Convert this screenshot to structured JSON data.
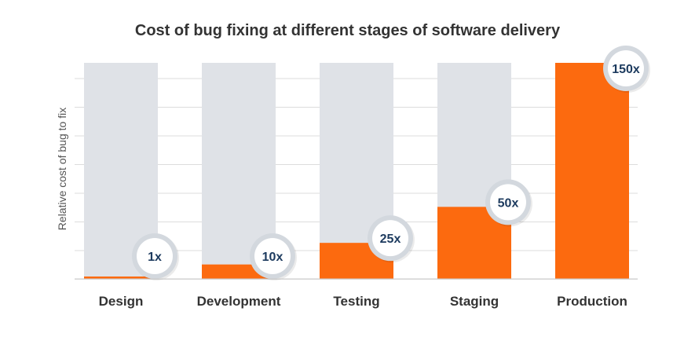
{
  "chart_data": {
    "type": "bar",
    "title": "Cost of bug fixing at different stages of software delivery",
    "ylabel": "Relative cost of bug to fix",
    "categories": [
      "Design",
      "Development",
      "Testing",
      "Staging",
      "Production"
    ],
    "values": [
      1,
      10,
      25,
      50,
      150
    ],
    "data_labels": [
      "1x",
      "10x",
      "25x",
      "50x",
      "150x"
    ],
    "ylim": [
      0,
      150
    ],
    "grid": true,
    "legend": "none"
  },
  "colors": {
    "bar": "#fc6a0f",
    "track": "#dfe2e7",
    "grid": "#dcdcdc",
    "label_text": "#1c3a5e",
    "badge_ring": "#d3d8de",
    "title": "#333333"
  }
}
